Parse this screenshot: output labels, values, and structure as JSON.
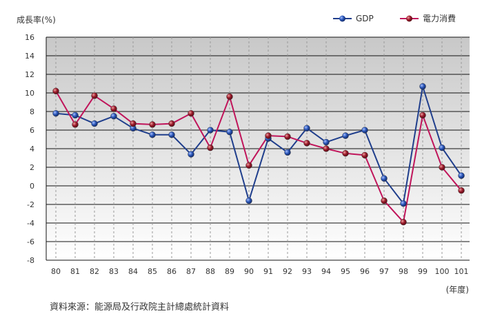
{
  "chart_data": {
    "type": "line",
    "ylabel": "成長率(%)",
    "xunit": "(年度)",
    "source": "資料來源：能源局及行政院主計總處統計資料",
    "categories": [
      "80",
      "81",
      "82",
      "83",
      "84",
      "85",
      "86",
      "87",
      "88",
      "89",
      "90",
      "91",
      "92",
      "93",
      "94",
      "95",
      "96",
      "97",
      "98",
      "99",
      "100",
      "101"
    ],
    "ylim": [
      -8,
      16
    ],
    "yticks": [
      16,
      14,
      12,
      10,
      8,
      6,
      4,
      2,
      0,
      -2,
      -4,
      -6,
      -8
    ],
    "grid": true,
    "legend_position": "top-right",
    "series": [
      {
        "name": "GDP",
        "color": "#1f3e8c",
        "values": [
          7.8,
          7.6,
          6.7,
          7.5,
          6.2,
          5.5,
          5.5,
          3.4,
          6.0,
          5.8,
          -1.6,
          5.1,
          3.6,
          6.2,
          4.7,
          5.4,
          6.0,
          0.8,
          -1.9,
          10.7,
          4.1,
          1.1
        ]
      },
      {
        "name": "電力消費",
        "color": "#c0145a",
        "values": [
          10.2,
          6.6,
          9.7,
          8.3,
          6.7,
          6.6,
          6.7,
          7.8,
          4.1,
          9.6,
          2.2,
          5.4,
          5.3,
          4.6,
          4.0,
          3.5,
          3.3,
          -1.6,
          -3.9,
          7.6,
          2.0,
          -0.5
        ]
      }
    ]
  }
}
